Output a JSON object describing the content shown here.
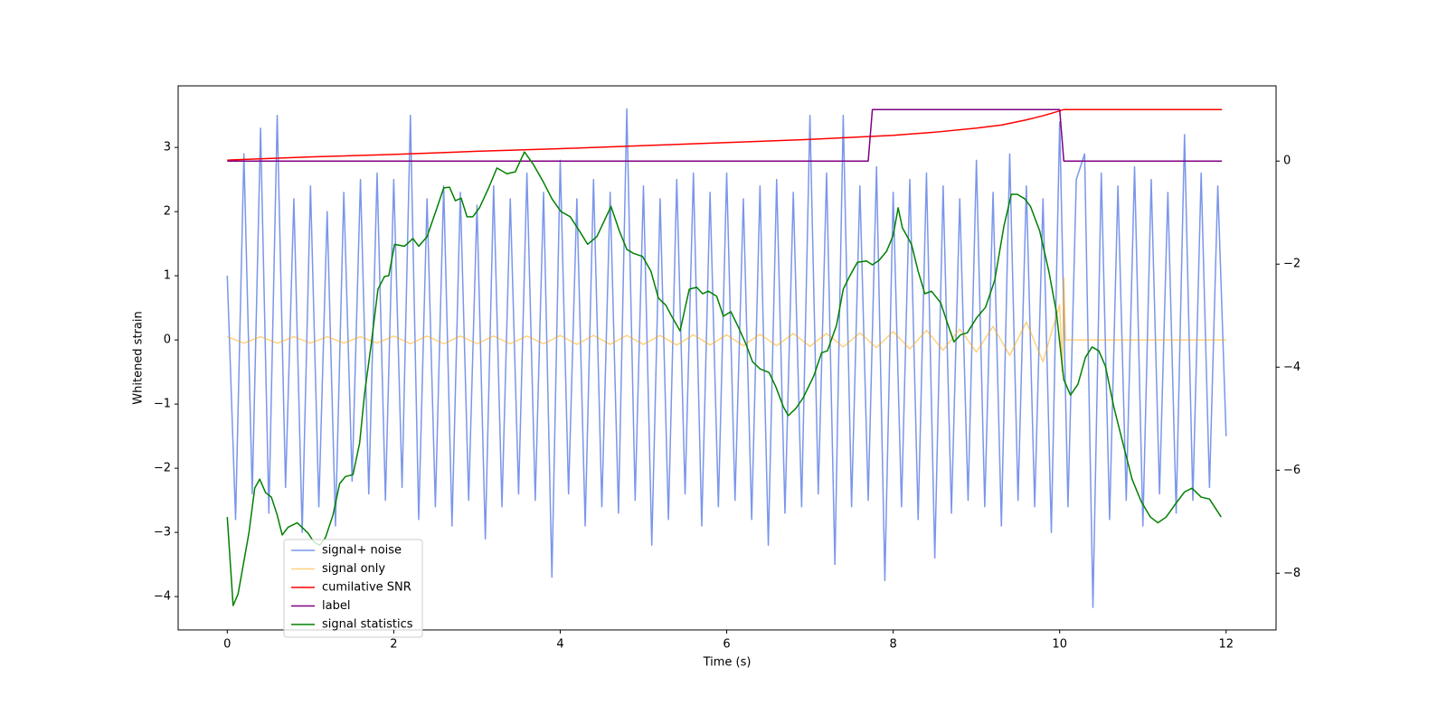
{
  "chart_data": {
    "type": "line",
    "xlabel": "Time (s)",
    "ylabel": "Whitened strain",
    "xlim": [
      -0.59,
      12.6
    ],
    "ylim": [
      -4.52,
      3.96
    ],
    "y2lim": [
      -9.1,
      1.46
    ],
    "xticks": [
      0,
      2,
      4,
      6,
      8,
      10,
      12
    ],
    "yticks": [
      {
        "value": -4,
        "label": "−4"
      },
      {
        "value": -3,
        "label": "−3"
      },
      {
        "value": -2,
        "label": "−2"
      },
      {
        "value": -1,
        "label": "−1"
      },
      0,
      1,
      2,
      3
    ],
    "y2ticks": [
      0,
      {
        "value": -2,
        "label": "−2"
      },
      {
        "value": -4,
        "label": "−4"
      },
      {
        "value": -6,
        "label": "−6"
      },
      {
        "value": -8,
        "label": "−8"
      }
    ],
    "legend": "lower left",
    "series": [
      {
        "name": "signal+ noise",
        "color": "#4169e1",
        "alpha": 0.7,
        "x": [
          0,
          0.1,
          0.2,
          0.3,
          0.4,
          0.5,
          0.6,
          0.7,
          0.8,
          0.9,
          1,
          1.1,
          1.2,
          1.3,
          1.4,
          1.5,
          1.6,
          1.7,
          1.8,
          1.9,
          2,
          2.1,
          2.2,
          2.3,
          2.4,
          2.5,
          2.6,
          2.7,
          2.8,
          2.9,
          3,
          3.1,
          3.2,
          3.3,
          3.4,
          3.5,
          3.6,
          3.7,
          3.8,
          3.9,
          4,
          4.1,
          4.2,
          4.3,
          4.4,
          4.5,
          4.6,
          4.7,
          4.8,
          4.9,
          5,
          5.1,
          5.2,
          5.3,
          5.4,
          5.5,
          5.6,
          5.7,
          5.8,
          5.9,
          6,
          6.1,
          6.2,
          6.3,
          6.4,
          6.5,
          6.6,
          6.7,
          6.8,
          6.9,
          7,
          7.1,
          7.2,
          7.3,
          7.4,
          7.5,
          7.6,
          7.7,
          7.8,
          7.9,
          8,
          8.1,
          8.2,
          8.3,
          8.4,
          8.5,
          8.6,
          8.7,
          8.8,
          8.9,
          9,
          9.1,
          9.2,
          9.3,
          9.4,
          9.5,
          9.6,
          9.7,
          9.8,
          9.9,
          10,
          10.1,
          10.2,
          10.3,
          10.4,
          10.5,
          10.6,
          10.7,
          10.8,
          10.9,
          11,
          11.1,
          11.2,
          11.3,
          11.4,
          11.5,
          11.6,
          11.7,
          11.8,
          11.9,
          12
        ],
        "values": [
          1.0,
          -2.8,
          2.9,
          -2.4,
          3.3,
          -2.7,
          3.5,
          -2.3,
          2.2,
          -3.0,
          2.4,
          -2.6,
          2.0,
          -2.9,
          2.3,
          -2.2,
          2.5,
          -2.4,
          2.6,
          -2.5,
          2.5,
          -2.3,
          3.5,
          -2.8,
          2.2,
          -2.6,
          2.4,
          -2.9,
          2.3,
          -2.5,
          2.1,
          -3.1,
          2.4,
          -2.6,
          2.2,
          -2.4,
          2.6,
          -2.5,
          2.3,
          -3.7,
          2.8,
          -2.4,
          2.2,
          -2.9,
          2.5,
          -2.6,
          2.3,
          -2.7,
          3.6,
          -2.5,
          2.4,
          -3.2,
          2.2,
          -2.8,
          2.5,
          -2.4,
          2.6,
          -2.9,
          2.3,
          -2.6,
          2.6,
          -2.5,
          2.2,
          -2.8,
          2.4,
          -3.2,
          2.5,
          -2.7,
          2.3,
          -2.6,
          3.5,
          -2.4,
          2.6,
          -3.5,
          3.5,
          -2.6,
          2.4,
          -2.5,
          2.7,
          -3.75,
          2.3,
          -2.6,
          2.5,
          -2.8,
          2.6,
          -3.4,
          2.4,
          -2.7,
          2.2,
          -2.5,
          2.8,
          -2.6,
          2.3,
          -2.9,
          2.9,
          -2.5,
          2.4,
          -2.6,
          2.2,
          -3.0,
          3.4,
          -2.6,
          2.5,
          2.9,
          -4.17,
          2.6,
          -2.8,
          2.4,
          -2.5,
          2.7,
          -2.9,
          2.5,
          -2.4,
          2.3,
          -2.7,
          3.2,
          -2.5,
          2.6,
          -2.3,
          2.4,
          -1.5
        ]
      },
      {
        "name": "signal only",
        "color": "#ffa500",
        "alpha": 0.5,
        "x": [
          0,
          0.2,
          0.4,
          0.6,
          0.8,
          1,
          1.2,
          1.4,
          1.6,
          1.8,
          2,
          2.2,
          2.4,
          2.6,
          2.8,
          3,
          3.2,
          3.4,
          3.6,
          3.8,
          4,
          4.2,
          4.4,
          4.6,
          4.8,
          5,
          5.2,
          5.4,
          5.6,
          5.8,
          6,
          6.2,
          6.4,
          6.6,
          6.8,
          7,
          7.2,
          7.4,
          7.6,
          7.8,
          8,
          8.2,
          8.4,
          8.6,
          8.8,
          9,
          9.2,
          9.4,
          9.6,
          9.8,
          10,
          10.03,
          10.05,
          10.07,
          12
        ],
        "values": [
          0.05,
          -0.05,
          0.05,
          -0.05,
          0.05,
          -0.05,
          0.05,
          -0.05,
          0.05,
          -0.05,
          0.06,
          -0.06,
          0.06,
          -0.06,
          0.06,
          -0.06,
          0.06,
          -0.06,
          0.06,
          -0.06,
          0.07,
          -0.07,
          0.07,
          -0.07,
          0.07,
          -0.07,
          0.07,
          -0.08,
          0.08,
          -0.08,
          0.08,
          -0.09,
          0.09,
          -0.09,
          0.1,
          -0.1,
          0.1,
          -0.11,
          0.11,
          -0.12,
          0.13,
          -0.14,
          0.15,
          -0.16,
          0.17,
          -0.19,
          0.21,
          -0.24,
          0.28,
          -0.34,
          0.55,
          -0.5,
          0.97,
          0,
          0
        ]
      },
      {
        "name": "cumilative SNR",
        "color": "#ff0000",
        "alpha": 1,
        "axis": "y2",
        "x": [
          0,
          1,
          2,
          3,
          4,
          5,
          6,
          7,
          8,
          8.5,
          9,
          9.3,
          9.6,
          9.8,
          9.95,
          10.05,
          11.95
        ],
        "values": [
          0.02,
          0.08,
          0.13,
          0.19,
          0.24,
          0.3,
          0.36,
          0.42,
          0.5,
          0.56,
          0.64,
          0.7,
          0.8,
          0.88,
          0.95,
          1,
          1
        ]
      },
      {
        "name": "label",
        "color": "#800080",
        "alpha": 1,
        "axis": "y2",
        "x": [
          0,
          7.7,
          7.75,
          10.0,
          10.05,
          11.95
        ],
        "values": [
          0,
          0,
          1,
          1,
          0,
          0
        ]
      },
      {
        "name": "signal statistics",
        "color": "#008000",
        "alpha": 1,
        "x": [
          0,
          0.07,
          0.13,
          0.26,
          0.33,
          0.39,
          0.46,
          0.53,
          0.6,
          0.66,
          0.73,
          0.84,
          0.97,
          1.04,
          1.11,
          1.18,
          1.27,
          1.35,
          1.42,
          1.51,
          1.59,
          1.65,
          1.73,
          1.81,
          1.89,
          1.94,
          2.01,
          2.13,
          2.23,
          2.3,
          2.4,
          2.52,
          2.6,
          2.67,
          2.74,
          2.81,
          2.88,
          2.95,
          3.03,
          3.14,
          3.24,
          3.36,
          3.46,
          3.57,
          3.68,
          3.79,
          3.9,
          4.01,
          4.12,
          4.23,
          4.33,
          4.44,
          4.61,
          4.71,
          4.8,
          4.88,
          4.99,
          5.09,
          5.18,
          5.27,
          5.33,
          5.44,
          5.55,
          5.64,
          5.71,
          5.78,
          5.88,
          5.96,
          6.05,
          6.14,
          6.23,
          6.31,
          6.4,
          6.51,
          6.59,
          6.68,
          6.74,
          6.83,
          6.92,
          7.05,
          7.14,
          7.21,
          7.32,
          7.4,
          7.48,
          7.57,
          7.68,
          7.75,
          7.83,
          7.92,
          8.0,
          8.06,
          8.11,
          8.22,
          8.3,
          8.38,
          8.46,
          8.57,
          8.66,
          8.73,
          8.81,
          8.89,
          9.0,
          9.11,
          9.22,
          9.33,
          9.42,
          9.49,
          9.58,
          9.65,
          9.76,
          9.87,
          9.96,
          10.05,
          10.13,
          10.22,
          10.31,
          10.39,
          10.47,
          10.55,
          10.65,
          10.76,
          10.87,
          10.98,
          11.09,
          11.18,
          11.28,
          11.39,
          11.5,
          11.59,
          11.7,
          11.8,
          11.94
        ],
        "values": [
          -2.76,
          -4.14,
          -3.96,
          -3.01,
          -2.31,
          -2.17,
          -2.38,
          -2.45,
          -2.73,
          -3.04,
          -2.92,
          -2.85,
          -3.01,
          -3.15,
          -3.2,
          -3.08,
          -2.73,
          -2.24,
          -2.13,
          -2.1,
          -1.61,
          -0.83,
          -0.06,
          0.79,
          0.99,
          1.0,
          1.49,
          1.46,
          1.58,
          1.46,
          1.61,
          2.06,
          2.37,
          2.38,
          2.17,
          2.21,
          1.92,
          1.92,
          2.06,
          2.37,
          2.68,
          2.59,
          2.62,
          2.93,
          2.73,
          2.48,
          2.2,
          2.0,
          1.92,
          1.7,
          1.49,
          1.61,
          2.08,
          1.7,
          1.41,
          1.35,
          1.3,
          1.07,
          0.65,
          0.54,
          0.39,
          0.14,
          0.79,
          0.82,
          0.72,
          0.76,
          0.68,
          0.37,
          0.44,
          0.2,
          -0.06,
          -0.34,
          -0.45,
          -0.51,
          -0.73,
          -1.04,
          -1.18,
          -1.07,
          -0.9,
          -0.55,
          -0.2,
          -0.17,
          0.23,
          0.79,
          1.0,
          1.21,
          1.23,
          1.17,
          1.24,
          1.38,
          1.63,
          2.06,
          1.75,
          1.49,
          1.07,
          0.72,
          0.76,
          0.58,
          0.23,
          -0.03,
          0.08,
          0.11,
          0.34,
          0.51,
          0.93,
          1.77,
          2.27,
          2.27,
          2.2,
          2.08,
          1.7,
          1.07,
          0.44,
          -0.62,
          -0.86,
          -0.69,
          -0.27,
          -0.11,
          -0.17,
          -0.41,
          -1.04,
          -1.61,
          -2.17,
          -2.52,
          -2.76,
          -2.85,
          -2.76,
          -2.56,
          -2.37,
          -2.31,
          -2.45,
          -2.48,
          -2.76
        ]
      }
    ]
  }
}
